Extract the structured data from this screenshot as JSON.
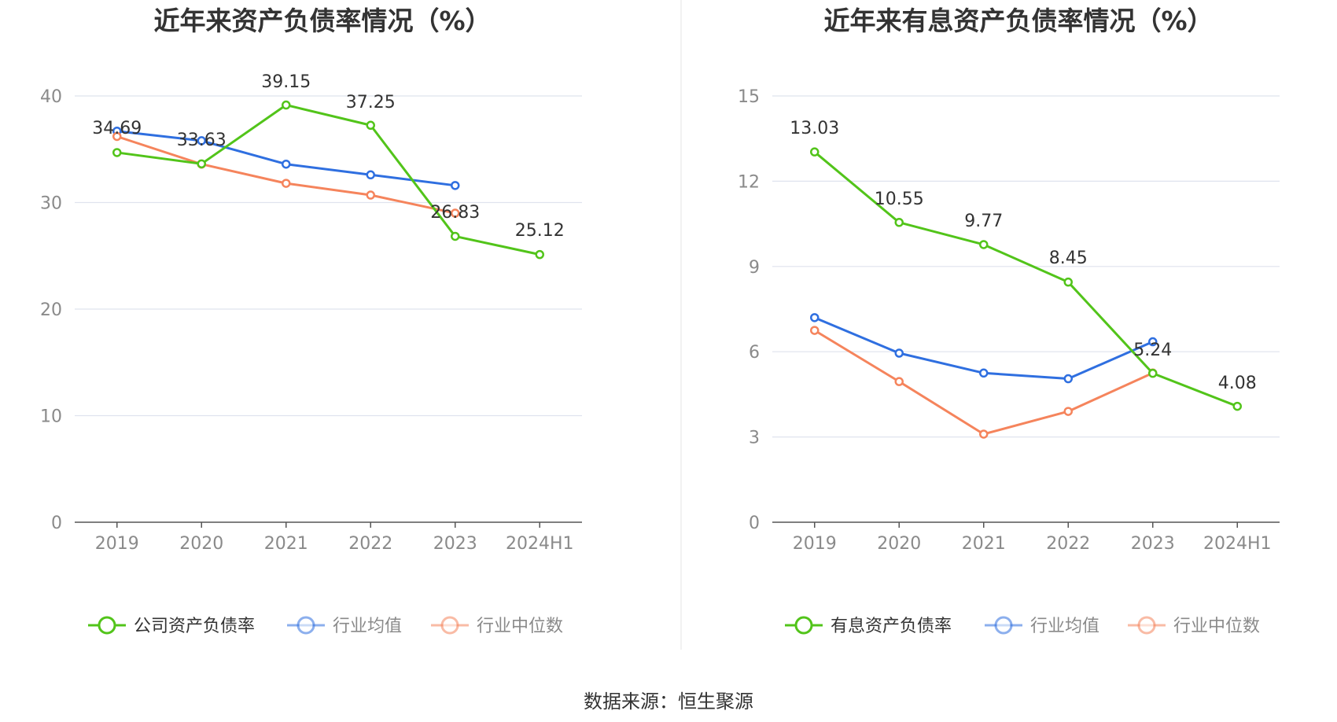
{
  "source": "数据来源：恒生聚源",
  "colors": {
    "company": "#52c41a",
    "average": "#2f6fe0",
    "median": "#f5845c",
    "grid": "#dfe3ee",
    "axis": "#555555"
  },
  "chart_data": [
    {
      "type": "line",
      "title": "近年来资产负债率情况（%）",
      "categories": [
        "2019",
        "2020",
        "2021",
        "2022",
        "2023",
        "2024H1"
      ],
      "ylim": [
        0,
        40
      ],
      "yticks": [
        0,
        10,
        20,
        30,
        40
      ],
      "grid": true,
      "legend_position": "bottom",
      "series": [
        {
          "name": "公司资产负债率",
          "key": "company",
          "values": [
            34.69,
            33.63,
            39.15,
            37.25,
            26.83,
            25.12
          ],
          "labels": [
            "34.69",
            "33.63",
            "39.15",
            "37.25",
            "26.83",
            "25.12"
          ]
        },
        {
          "name": "行业均值",
          "key": "average",
          "values": [
            36.7,
            35.8,
            33.6,
            32.6,
            31.6,
            null
          ]
        },
        {
          "name": "行业中位数",
          "key": "median",
          "values": [
            36.2,
            33.6,
            31.8,
            30.7,
            29.0,
            null
          ]
        }
      ]
    },
    {
      "type": "line",
      "title": "近年来有息资产负债率情况（%）",
      "categories": [
        "2019",
        "2020",
        "2021",
        "2022",
        "2023",
        "2024H1"
      ],
      "ylim": [
        0,
        15
      ],
      "yticks": [
        0,
        3,
        6,
        9,
        12,
        15
      ],
      "grid": true,
      "legend_position": "bottom",
      "series": [
        {
          "name": "有息资产负债率",
          "key": "company",
          "values": [
            13.03,
            10.55,
            9.77,
            8.45,
            5.24,
            4.08
          ],
          "labels": [
            "13.03",
            "10.55",
            "9.77",
            "8.45",
            "5.24",
            "4.08"
          ]
        },
        {
          "name": "行业均值",
          "key": "average",
          "values": [
            7.2,
            5.95,
            5.25,
            5.05,
            6.35,
            null
          ]
        },
        {
          "name": "行业中位数",
          "key": "median",
          "values": [
            6.75,
            4.95,
            3.1,
            3.9,
            5.25,
            null
          ]
        }
      ]
    }
  ]
}
